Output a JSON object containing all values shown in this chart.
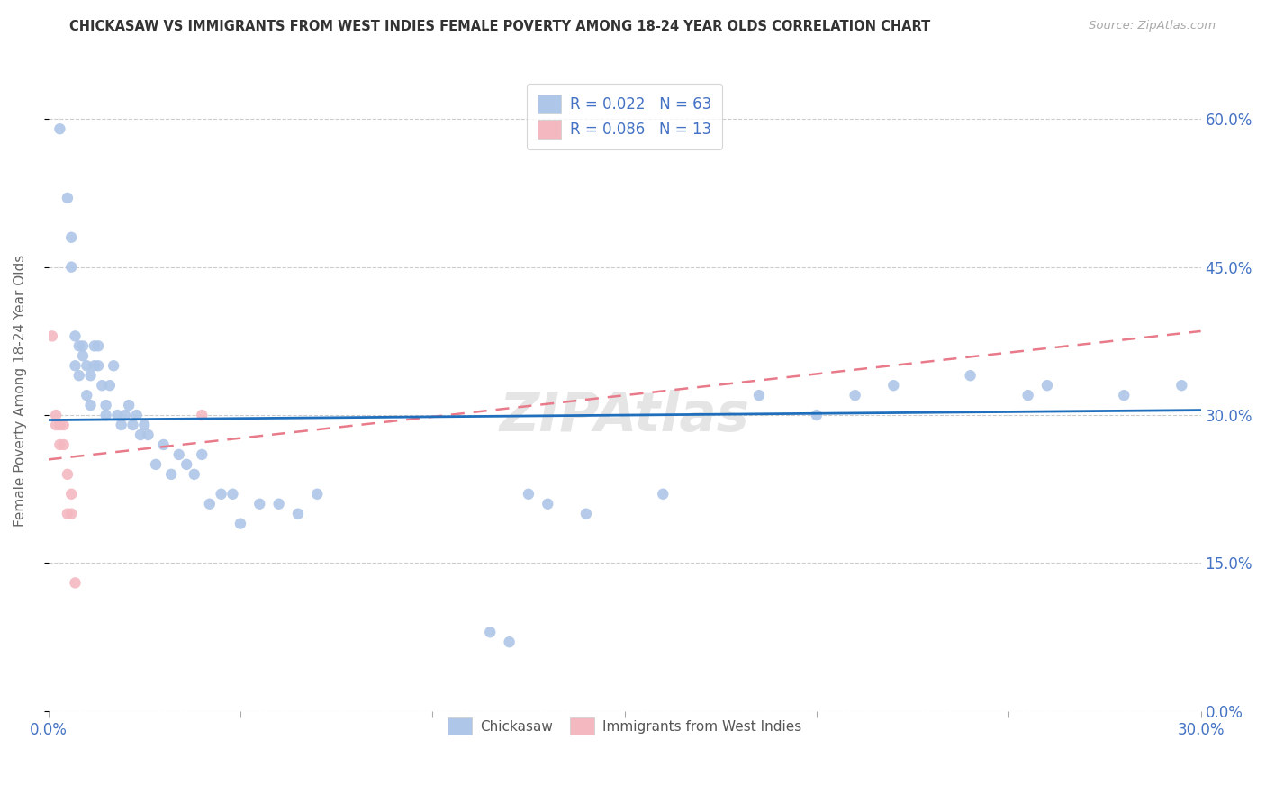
{
  "title": "CHICKASAW VS IMMIGRANTS FROM WEST INDIES FEMALE POVERTY AMONG 18-24 YEAR OLDS CORRELATION CHART",
  "source": "Source: ZipAtlas.com",
  "ylabel": "Female Poverty Among 18-24 Year Olds",
  "watermark": "ZIPAtlas",
  "xlim": [
    0.0,
    0.3
  ],
  "ylim": [
    0.0,
    0.65
  ],
  "xtick_positions": [
    0.0,
    0.05,
    0.1,
    0.15,
    0.2,
    0.25,
    0.3
  ],
  "xtick_labels": [
    "0.0%",
    "",
    "",
    "",
    "",
    "",
    "30.0%"
  ],
  "ytick_vals": [
    0.0,
    0.15,
    0.3,
    0.45,
    0.6
  ],
  "ytick_labels": [
    "0.0%",
    "15.0%",
    "30.0%",
    "45.0%",
    "60.0%"
  ],
  "series1_color": "#aec6e8",
  "series2_color": "#f4b8c1",
  "trendline1_color": "#1f6fbd",
  "trendline2_color": "#e87a8a",
  "background_color": "#ffffff",
  "grid_color": "#cccccc",
  "title_color": "#333333",
  "axis_color": "#4472c4",
  "marker_size": 80,
  "chickasaw_x": [
    0.003,
    0.005,
    0.006,
    0.006,
    0.007,
    0.007,
    0.008,
    0.008,
    0.009,
    0.009,
    0.01,
    0.01,
    0.011,
    0.011,
    0.012,
    0.012,
    0.013,
    0.013,
    0.014,
    0.015,
    0.015,
    0.016,
    0.017,
    0.018,
    0.019,
    0.02,
    0.021,
    0.022,
    0.023,
    0.024,
    0.025,
    0.026,
    0.028,
    0.03,
    0.032,
    0.034,
    0.036,
    0.038,
    0.04,
    0.042,
    0.045,
    0.048,
    0.05,
    0.055,
    0.06,
    0.065,
    0.07,
    0.115,
    0.12,
    0.125,
    0.13,
    0.14,
    0.16,
    0.185,
    0.2,
    0.21,
    0.22,
    0.24,
    0.255,
    0.26,
    0.28,
    0.295
  ],
  "chickasaw_y": [
    0.59,
    0.52,
    0.48,
    0.45,
    0.38,
    0.35,
    0.37,
    0.34,
    0.37,
    0.36,
    0.35,
    0.32,
    0.34,
    0.31,
    0.37,
    0.35,
    0.37,
    0.35,
    0.33,
    0.31,
    0.3,
    0.33,
    0.35,
    0.3,
    0.29,
    0.3,
    0.31,
    0.29,
    0.3,
    0.28,
    0.29,
    0.28,
    0.25,
    0.27,
    0.24,
    0.26,
    0.25,
    0.24,
    0.26,
    0.21,
    0.22,
    0.22,
    0.19,
    0.21,
    0.21,
    0.2,
    0.22,
    0.08,
    0.07,
    0.22,
    0.21,
    0.2,
    0.22,
    0.32,
    0.3,
    0.32,
    0.33,
    0.34,
    0.32,
    0.33,
    0.32,
    0.33
  ],
  "westindies_x": [
    0.001,
    0.002,
    0.002,
    0.003,
    0.003,
    0.004,
    0.004,
    0.005,
    0.005,
    0.006,
    0.006,
    0.007,
    0.04
  ],
  "westindies_y": [
    0.38,
    0.29,
    0.3,
    0.29,
    0.27,
    0.27,
    0.29,
    0.24,
    0.2,
    0.2,
    0.22,
    0.13,
    0.3
  ]
}
